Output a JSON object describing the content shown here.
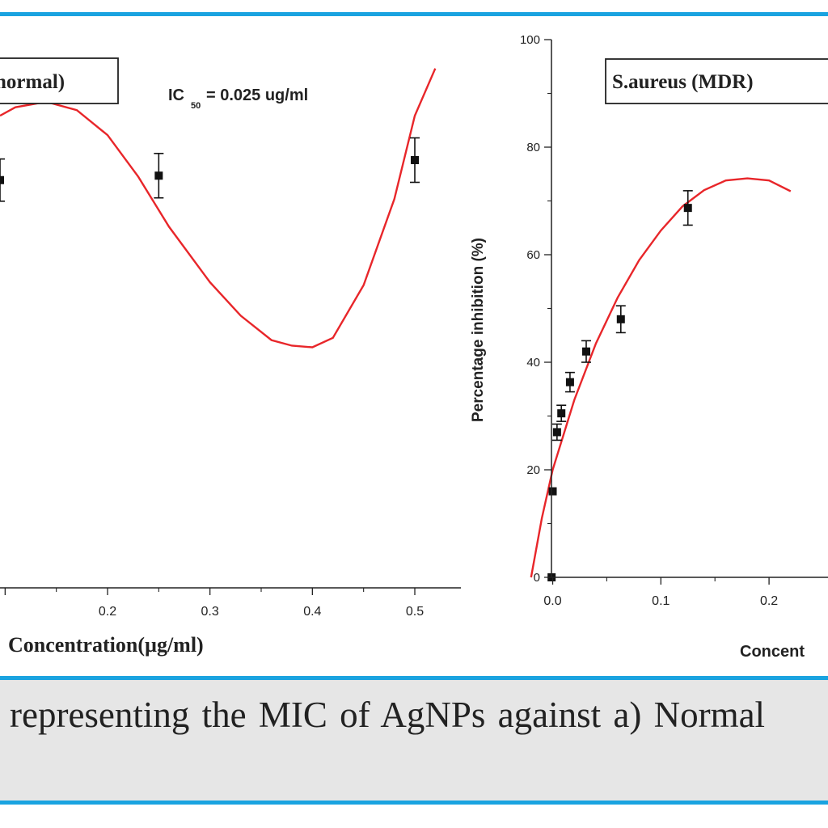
{
  "caption": "representing the MIC of AgNPs against a) Normal",
  "colors": {
    "rule": "#1aa3e0",
    "curve": "#e8262a",
    "point": "#111111",
    "caption_bg": "#e6e6e6"
  },
  "chart_data": [
    {
      "type": "scatter",
      "title": "normal)",
      "annotation": {
        "prefix": "IC",
        "subscript": "50",
        "suffix": "= 0.025 ug/ml"
      },
      "xlabel": "Concentration(µg/ml)",
      "ylabel": "",
      "xlim": [
        0.095,
        0.545
      ],
      "ylim": [
        0,
        100
      ],
      "xticks": [
        0.1,
        0.2,
        0.3,
        0.4,
        0.5
      ],
      "xtick_labels": [
        "",
        "0.2",
        "0.3",
        "0.4",
        "0.5"
      ],
      "yticks": [],
      "grid": false,
      "points": [
        {
          "x": 0.095,
          "y": 73.4,
          "err": 3.8
        },
        {
          "x": 0.25,
          "y": 74.2,
          "err": 4.0
        },
        {
          "x": 0.5,
          "y": 77.0,
          "err": 4.0
        }
      ],
      "fit": {
        "x": [
          0.095,
          0.11,
          0.14,
          0.17,
          0.2,
          0.23,
          0.26,
          0.3,
          0.33,
          0.36,
          0.38,
          0.4,
          0.42,
          0.45,
          0.48,
          0.5,
          0.52
        ],
        "y": [
          85,
          86.5,
          87.5,
          86,
          81.5,
          74,
          65,
          55,
          49,
          44.6,
          43.6,
          43.3,
          45,
          54.5,
          70,
          85,
          93.5
        ]
      }
    },
    {
      "type": "scatter",
      "title": "S.aureus (MDR)",
      "xlabel": "Concent",
      "ylabel": "Percentage inhibition (%)",
      "xlim": [
        -0.04,
        0.24
      ],
      "ylim": [
        0,
        100
      ],
      "xticks": [
        0.0,
        0.1,
        0.2
      ],
      "xtick_labels": [
        "0.0",
        "0.1",
        "0.2"
      ],
      "yticks": [
        0,
        20,
        40,
        60,
        80,
        100
      ],
      "grid": false,
      "points": [
        {
          "x": -0.001,
          "y": 0,
          "err": 0
        },
        {
          "x": 0.0,
          "y": 16,
          "err": 0
        },
        {
          "x": 0.004,
          "y": 27,
          "err": 1.5
        },
        {
          "x": 0.008,
          "y": 30.5,
          "err": 1.5
        },
        {
          "x": 0.016,
          "y": 36.3,
          "err": 1.8
        },
        {
          "x": 0.031,
          "y": 42,
          "err": 2.0
        },
        {
          "x": 0.063,
          "y": 48,
          "err": 2.5
        },
        {
          "x": 0.125,
          "y": 68.7,
          "err": 3.2
        }
      ],
      "fit": {
        "x": [
          -0.02,
          -0.01,
          0.0,
          0.02,
          0.04,
          0.06,
          0.08,
          0.1,
          0.12,
          0.14,
          0.16,
          0.18,
          0.2,
          0.22
        ],
        "y": [
          0,
          11,
          20,
          33,
          43.5,
          52,
          59,
          64.5,
          69,
          72,
          73.8,
          74.2,
          73.8,
          71.8
        ]
      }
    }
  ]
}
